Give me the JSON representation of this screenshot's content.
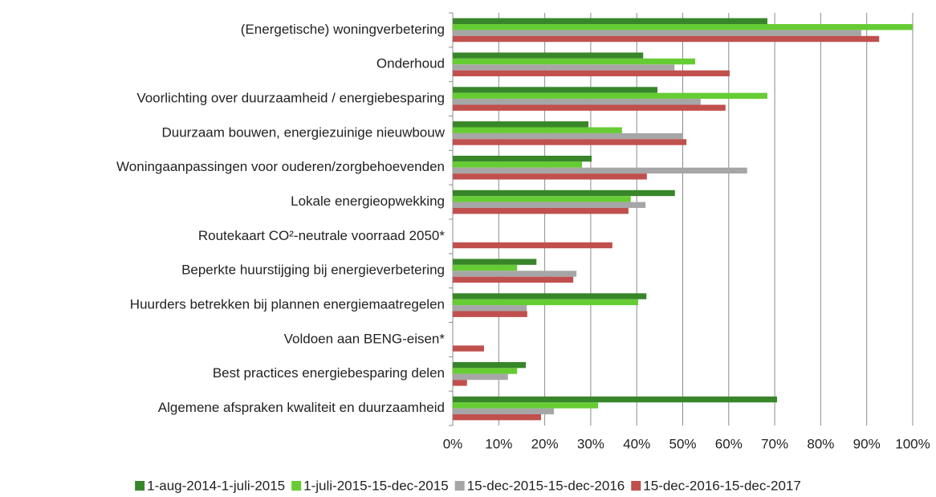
{
  "chart_data": {
    "type": "bar",
    "orientation": "horizontal",
    "categories": [
      "(Energetische) woningverbetering",
      "Onderhoud",
      "Voorlichting over duurzaamheid / energiebesparing",
      "Duurzaam bouwen, energiezuinige nieuwbouw",
      "Woningaanpassingen voor ouderen/zorgbehoevenden",
      "Lokale energieopwekking",
      "Routekaart CO²-neutrale voorraad 2050*",
      "Beperkte huurstijging bij energieverbetering",
      "Huurders betrekken bij plannen energiemaatregelen",
      "Voldoen aan BENG-eisen*",
      "Best practices energiebesparing delen",
      "Algemene afspraken kwaliteit en duurzaamheid"
    ],
    "series": [
      {
        "name": "1-aug-2014-1-juli-2015",
        "color": "#38862a",
        "values": [
          68.4,
          41.4,
          44.5,
          29.5,
          30.2,
          48.3,
          null,
          18.2,
          42.1,
          null,
          15.9,
          70.5
        ]
      },
      {
        "name": "1-juli-2015-15-dec-2015",
        "color": "#66cc33",
        "values": [
          100,
          52.7,
          68.4,
          36.8,
          28.1,
          38.7,
          null,
          14.0,
          40.3,
          null,
          14.0,
          31.6
        ]
      },
      {
        "name": "15-dec-2015-15-dec-2016",
        "color": "#a6a6a6",
        "values": [
          88.8,
          48.2,
          53.9,
          50.1,
          64.0,
          41.9,
          null,
          26.9,
          16.1,
          null,
          12.0,
          22.0
        ]
      },
      {
        "name": "15-dec-2016-15-dec-2017",
        "color": "#c0504d",
        "values": [
          92.7,
          60.2,
          59.3,
          50.8,
          42.2,
          38.2,
          34.7,
          26.2,
          16.2,
          6.8,
          3.1,
          19.2
        ]
      }
    ],
    "xlim": [
      0,
      100
    ],
    "xticks": [
      {
        "value": 0,
        "label": "0%"
      },
      {
        "value": 10,
        "label": "10%"
      },
      {
        "value": 20,
        "label": "20%"
      },
      {
        "value": 30,
        "label": "30%"
      },
      {
        "value": 40,
        "label": "40%"
      },
      {
        "value": 50,
        "label": "50%"
      },
      {
        "value": 60,
        "label": "60%"
      },
      {
        "value": 70,
        "label": "70%"
      },
      {
        "value": 80,
        "label": "80%"
      },
      {
        "value": 90,
        "label": "90%"
      },
      {
        "value": 100,
        "label": "100%"
      }
    ],
    "grid": true,
    "legend": "bottom"
  }
}
